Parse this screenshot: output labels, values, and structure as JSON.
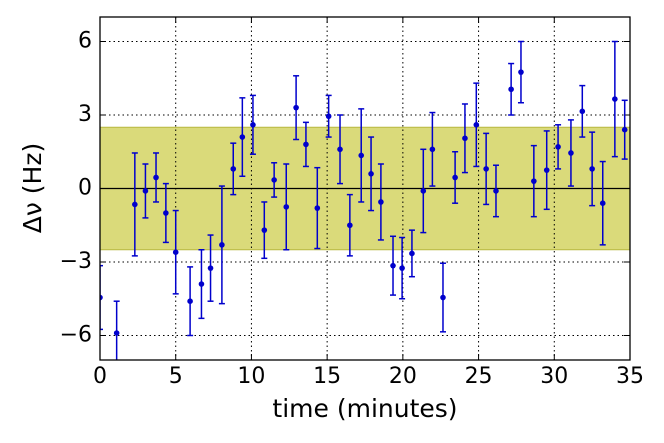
{
  "chart_data": {
    "type": "errorbar-scatter",
    "xlabel": "time (minutes)",
    "ylabel": "Δν (Hz)",
    "xlim": [
      0,
      35
    ],
    "ylim": [
      -7,
      7
    ],
    "xticks": [
      0,
      5,
      10,
      15,
      20,
      25,
      30,
      35
    ],
    "yticks": [
      {
        "value": -6,
        "label": "−6"
      },
      {
        "value": -3,
        "label": "−3"
      },
      0,
      3,
      6
    ],
    "grid": true,
    "band": [
      -2.5,
      2.5
    ],
    "band_color": "#d6d66b",
    "hline": 0,
    "series": [
      {
        "color": "#0000cc",
        "x": [
          0,
          1.1,
          2.3,
          3.0,
          3.7,
          4.35,
          5.0,
          5.95,
          6.7,
          7.3,
          8.05,
          8.8,
          9.4,
          10.1,
          10.85,
          11.5,
          12.3,
          12.95,
          13.6,
          14.35,
          15.1,
          15.85,
          16.5,
          17.25,
          17.9,
          18.55,
          19.35,
          19.95,
          20.6,
          21.35,
          21.95,
          22.65,
          23.45,
          24.1,
          24.85,
          25.5,
          26.15,
          27.15,
          27.8,
          28.65,
          29.5,
          30.25,
          31.1,
          31.85,
          32.5,
          33.2,
          34.0,
          34.65
        ],
        "values": [
          -4.45,
          -5.9,
          -0.65,
          -0.1,
          0.45,
          -1.0,
          -2.6,
          -4.6,
          -3.9,
          -3.25,
          -2.3,
          0.8,
          2.1,
          2.6,
          -1.7,
          0.35,
          -0.75,
          3.3,
          1.8,
          -0.8,
          2.95,
          1.6,
          -1.5,
          1.35,
          0.6,
          -0.55,
          -3.15,
          -3.25,
          -2.65,
          -0.1,
          1.6,
          -4.45,
          0.45,
          2.05,
          2.6,
          0.8,
          -0.1,
          4.05,
          4.75,
          0.3,
          0.75,
          1.7,
          1.45,
          3.15,
          0.8,
          -0.6,
          3.65,
          2.4
        ],
        "errors": [
          1.3,
          1.3,
          2.1,
          1.1,
          1.0,
          1.2,
          1.7,
          1.4,
          1.4,
          1.35,
          2.4,
          1.05,
          1.6,
          1.2,
          1.15,
          0.7,
          1.75,
          1.3,
          0.9,
          1.65,
          0.85,
          1.4,
          1.25,
          1.9,
          1.5,
          1.55,
          1.2,
          1.25,
          0.95,
          1.7,
          1.5,
          1.4,
          1.05,
          1.4,
          1.7,
          1.45,
          1.05,
          1.05,
          1.25,
          1.45,
          1.6,
          0.9,
          1.35,
          1.05,
          1.5,
          1.7,
          2.35,
          1.2
        ]
      }
    ]
  }
}
